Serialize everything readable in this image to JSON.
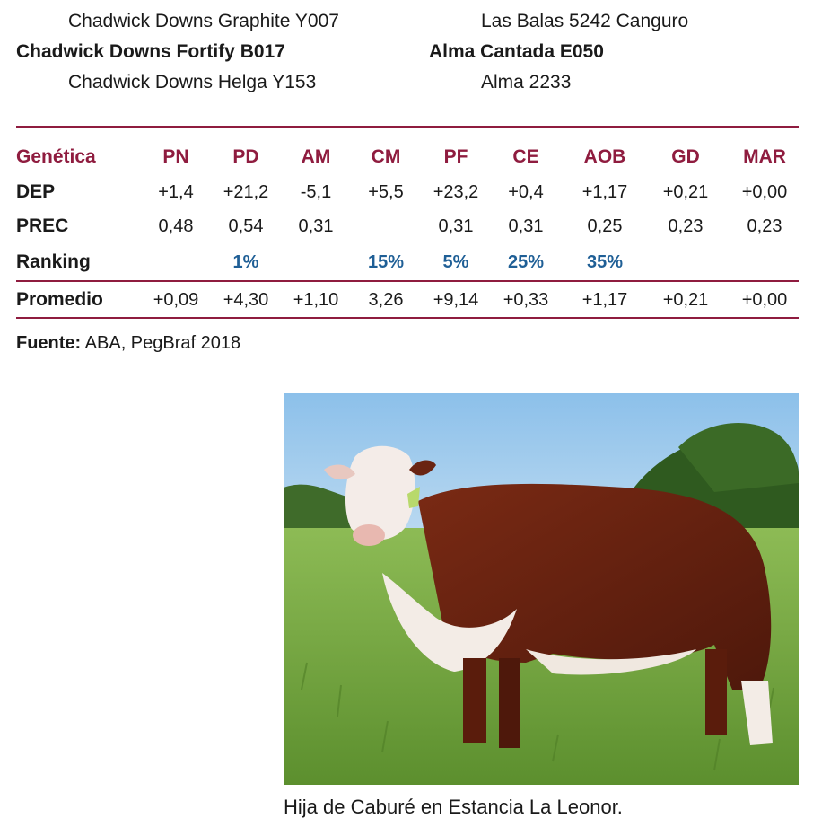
{
  "pedigree": {
    "left": {
      "top": "Chadwick Downs Graphite Y007",
      "main": "Chadwick Downs Fortify B017",
      "bottom": "Chadwick Downs Helga Y153"
    },
    "right": {
      "top": "Las Balas 5242 Canguro",
      "main": "Alma Cantada E050",
      "bottom": "Alma 2233"
    }
  },
  "table": {
    "header_label": "Genética",
    "columns": [
      "PN",
      "PD",
      "AM",
      "CM",
      "PF",
      "CE",
      "AOB",
      "GD",
      "MAR"
    ],
    "rows": [
      {
        "label": "DEP",
        "values": [
          "+1,4",
          "+21,2",
          "-5,1",
          "+5,5",
          "+23,2",
          "+0,4",
          "+1,17",
          "+0,21",
          "+0,00"
        ]
      },
      {
        "label": "PREC",
        "values": [
          "0,48",
          "0,54",
          "0,31",
          "",
          "0,31",
          "0,31",
          "0,25",
          "0,23",
          "0,23"
        ]
      },
      {
        "label": "Ranking",
        "values": [
          "",
          "1%",
          "",
          "15%",
          "5%",
          "25%",
          "35%",
          "",
          ""
        ]
      },
      {
        "label": "Promedio",
        "values": [
          "+0,09",
          "+4,30",
          "+1,10",
          "3,26",
          "+9,14",
          "+0,33",
          "+1,17",
          "+0,21",
          "+0,00"
        ]
      }
    ]
  },
  "source": {
    "label": "Fuente:",
    "text": "ABA, PegBraf 2018"
  },
  "photo": {
    "subject": "hereford-heifer-photo",
    "caption": "Hija de Caburé en Estancia La Leonor."
  },
  "colors": {
    "accent": "#8f1c3f",
    "ranking": "#1f5f96"
  }
}
